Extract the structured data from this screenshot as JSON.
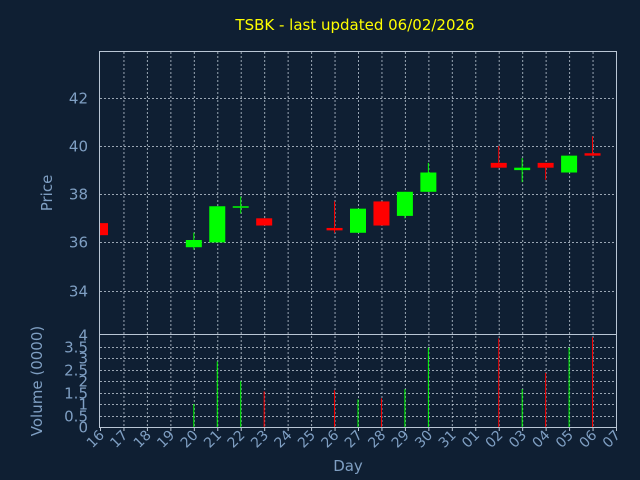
{
  "colors": {
    "background": "#0f1f33",
    "up": "#00ff00",
    "down": "#ff0000",
    "title": "#ffff00",
    "axis_text": "#7f9fc3",
    "grid": "#c9d3df"
  },
  "chart_data": {
    "type": "candlestick",
    "title": "TSBK - last updated 06/02/2026",
    "xlabel": "Day",
    "price_panel": {
      "ylabel": "Price",
      "ylim": [
        32.2,
        43.9
      ],
      "yticks": [
        34,
        36,
        38,
        40,
        42
      ],
      "grid": true
    },
    "volume_panel": {
      "ylabel": "Volume (0000)",
      "ylim": [
        0,
        4
      ],
      "yticks": [
        "0",
        "0.5",
        "1",
        "1.5",
        "2",
        "2.5",
        "3",
        "3.5",
        "4"
      ],
      "grid": true
    },
    "x_tick_labels": [
      "16",
      "17",
      "18",
      "19",
      "20",
      "21",
      "22",
      "23",
      "24",
      "25",
      "26",
      "27",
      "28",
      "29",
      "30",
      "31",
      "01",
      "02",
      "03",
      "04",
      "05",
      "06",
      "07"
    ],
    "candles": [
      {
        "x": 0,
        "open": 36.8,
        "high": 36.8,
        "low": 36.3,
        "close": 36.3,
        "volume": 0
      },
      {
        "x": 4,
        "open": 35.8,
        "high": 36.4,
        "low": 35.7,
        "close": 36.1,
        "volume": 1.0
      },
      {
        "x": 5,
        "open": 36.0,
        "high": 37.5,
        "low": 36.0,
        "close": 37.5,
        "volume": 2.85
      },
      {
        "x": 6,
        "open": 37.5,
        "high": 37.9,
        "low": 37.2,
        "close": 37.5,
        "volume": 2.0
      },
      {
        "x": 7,
        "open": 37.0,
        "high": 37.0,
        "low": 36.7,
        "close": 36.7,
        "volume": 1.55
      },
      {
        "x": 10,
        "open": 36.6,
        "high": 37.7,
        "low": 36.4,
        "close": 36.5,
        "volume": 1.6
      },
      {
        "x": 11,
        "open": 36.4,
        "high": 37.4,
        "low": 36.4,
        "close": 37.4,
        "volume": 1.2
      },
      {
        "x": 12,
        "open": 37.7,
        "high": 37.7,
        "low": 36.7,
        "close": 36.7,
        "volume": 1.25
      },
      {
        "x": 13,
        "open": 37.1,
        "high": 38.1,
        "low": 37.0,
        "close": 38.1,
        "volume": 1.65
      },
      {
        "x": 14,
        "open": 38.1,
        "high": 39.3,
        "low": 38.1,
        "close": 38.9,
        "volume": 3.45
      },
      {
        "x": 17,
        "open": 39.3,
        "high": 40.0,
        "low": 39.1,
        "close": 39.1,
        "volume": 3.85
      },
      {
        "x": 18,
        "open": 39.0,
        "high": 39.5,
        "low": 38.5,
        "close": 39.1,
        "volume": 1.65
      },
      {
        "x": 19,
        "open": 39.3,
        "high": 39.3,
        "low": 38.6,
        "close": 39.1,
        "volume": 2.35
      },
      {
        "x": 20,
        "open": 38.9,
        "high": 39.6,
        "low": 38.9,
        "close": 39.6,
        "volume": 3.45
      },
      {
        "x": 21,
        "open": 39.7,
        "high": 40.4,
        "low": 39.6,
        "close": 39.6,
        "volume": 3.9
      }
    ]
  }
}
